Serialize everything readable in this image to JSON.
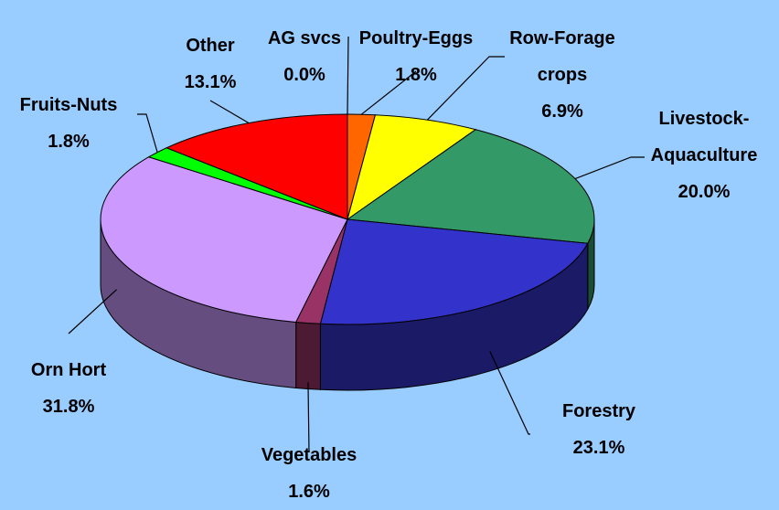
{
  "chart_data": {
    "type": "pie3d",
    "categories": [
      "AG svcs",
      "Poultry-Eggs",
      "Row-Forage crops",
      "Livestock-Aquaculture",
      "Forestry",
      "Vegetables",
      "Orn Hort",
      "Fruits-Nuts",
      "Other"
    ],
    "values": [
      0.0,
      1.8,
      6.9,
      20.0,
      23.1,
      1.6,
      31.8,
      1.8,
      13.1
    ],
    "value_labels": [
      "0.0%",
      "1.8%",
      "6.9%",
      "20.0%",
      "23.1%",
      "1.6%",
      "31.8%",
      "1.8%",
      "13.1%"
    ],
    "colors": [
      "#993300",
      "#ff6600",
      "#ffff00",
      "#339966",
      "#3333cc",
      "#993366",
      "#cc99ff",
      "#00ff00",
      "#ff0000"
    ]
  }
}
